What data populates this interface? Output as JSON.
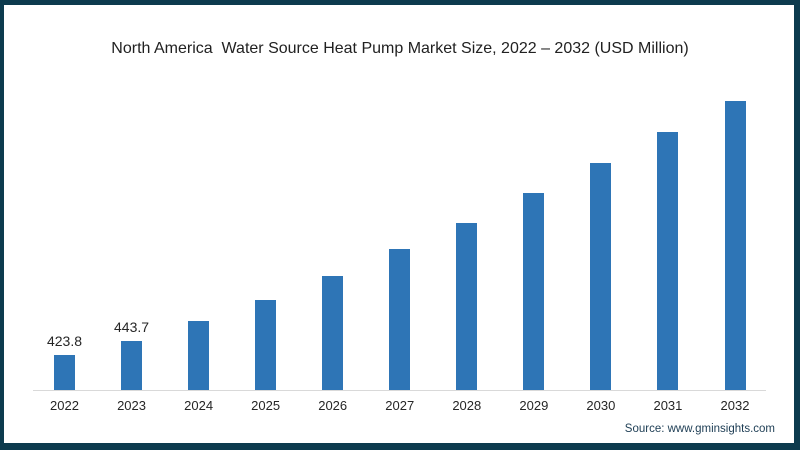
{
  "frame": {
    "border_color": "#0d3b4e",
    "background_color": "#ffffff"
  },
  "chart_data": {
    "type": "bar",
    "title": "North America  Water Source Heat Pump Market Size, 2022 – 2032 (USD Million)",
    "categories": [
      "2022",
      "2023",
      "2024",
      "2025",
      "2026",
      "2027",
      "2028",
      "2029",
      "2030",
      "2031",
      "2032"
    ],
    "values": [
      423.8,
      443.7,
      470.5,
      499.8,
      532.8,
      569.9,
      605.7,
      647.3,
      688.6,
      730.9,
      772.6
    ],
    "data_labels": [
      "423.8",
      "443.7",
      "",
      "",
      "",
      "",
      "",
      "",
      "",
      "",
      ""
    ],
    "xlabel": "",
    "ylabel": "",
    "ylim": [
      376,
      802
    ],
    "grid": false,
    "legend": false,
    "bar_color": "#2e75b6",
    "axis_line_color": "#d9d9d9",
    "label_color": "#262626"
  },
  "footer": {
    "source": "Source: www.gminsights.com"
  }
}
